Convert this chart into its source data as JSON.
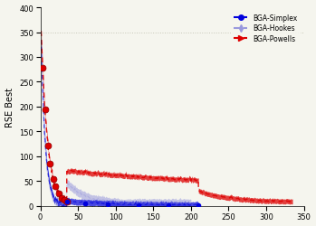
{
  "title": "",
  "xlabel": "",
  "ylabel": "RSE Best",
  "xlim": [
    0,
    350
  ],
  "ylim": [
    0,
    400
  ],
  "xticks": [
    0,
    50,
    100,
    150,
    200,
    250,
    300,
    350
  ],
  "yticks": [
    0,
    50,
    100,
    150,
    200,
    250,
    300,
    350,
    400
  ],
  "legend_labels": [
    "BGA-Simplex",
    "BGA-Hookes",
    "BGA-Powells"
  ],
  "colors": {
    "simplex": "#0000dd",
    "hookes": "#9999dd",
    "powells": "#dd0000"
  },
  "background": "#f5f5ee",
  "grid_color": "#ccccaa"
}
